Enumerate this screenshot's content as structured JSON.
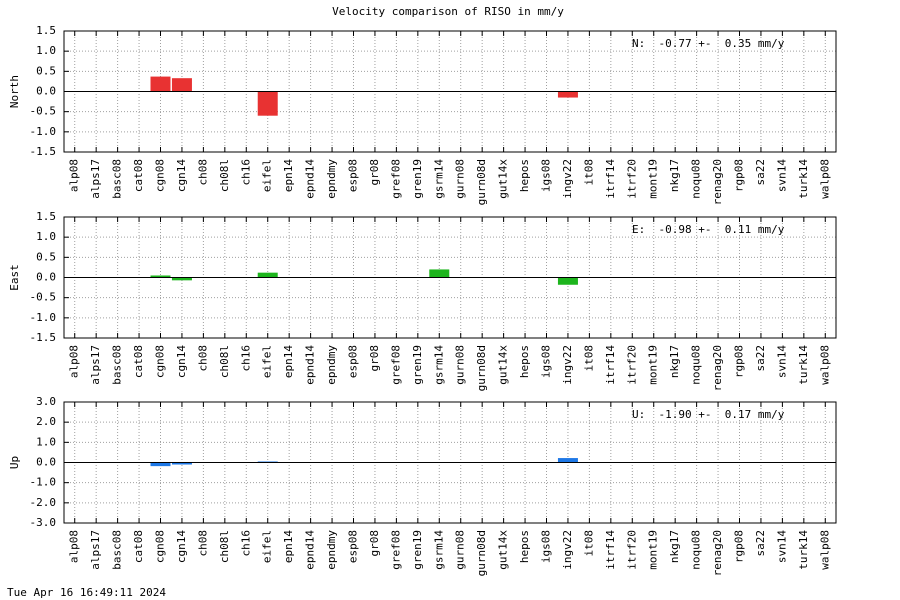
{
  "title": "Velocity comparison of RISO in mm/y",
  "footer": "Tue Apr 16 16:49:11 2024",
  "chart_data": [
    {
      "type": "bar",
      "ylabel": "North",
      "annotation": "N:  -0.77 +-  0.35 mm/y",
      "color": "#e83232",
      "grid": true,
      "categories": [
        "alp08",
        "alps17",
        "basc08",
        "cat08",
        "cgn08",
        "cgn14",
        "ch08",
        "ch08l",
        "ch16",
        "eifel",
        "epn14",
        "epnd14",
        "epndmy",
        "esp08",
        "gr08",
        "gref08",
        "gren19",
        "gsrm14",
        "gurn08",
        "gurn08d",
        "gut14x",
        "hepos",
        "igs08",
        "ingv22",
        "it08",
        "itrf14",
        "itrf20",
        "mont19",
        "nkg17",
        "noqu08",
        "renag20",
        "rgp08",
        "sa22",
        "svn14",
        "turk14",
        "walp08"
      ],
      "values": [
        null,
        null,
        null,
        null,
        0.37,
        0.33,
        null,
        null,
        null,
        -0.6,
        null,
        null,
        null,
        null,
        null,
        null,
        null,
        null,
        null,
        null,
        null,
        null,
        null,
        -0.15,
        null,
        null,
        null,
        null,
        null,
        null,
        null,
        null,
        null,
        null,
        null,
        null
      ],
      "ylim": [
        -1.5,
        1.5
      ],
      "yticks": [
        -1.5,
        {
          "value": -1.0,
          "label": "-1.0"
        },
        -0.5,
        {
          "value": 0,
          "label": "0.0"
        },
        0.5,
        {
          "value": 1.0,
          "label": "1.0"
        },
        1.5
      ]
    },
    {
      "type": "bar",
      "ylabel": "East",
      "annotation": "E:  -0.98 +-  0.11 mm/y",
      "color": "#1db51d",
      "grid": true,
      "categories": [
        "alp08",
        "alps17",
        "basc08",
        "cat08",
        "cgn08",
        "cgn14",
        "ch08",
        "ch08l",
        "ch16",
        "eifel",
        "epn14",
        "epnd14",
        "epndmy",
        "esp08",
        "gr08",
        "gref08",
        "gren19",
        "gsrm14",
        "gurn08",
        "gurn08d",
        "gut14x",
        "hepos",
        "igs08",
        "ingv22",
        "it08",
        "itrf14",
        "itrf20",
        "mont19",
        "nkg17",
        "noqu08",
        "renag20",
        "rgp08",
        "sa22",
        "svn14",
        "turk14",
        "walp08"
      ],
      "values": [
        null,
        null,
        null,
        null,
        0.05,
        -0.07,
        null,
        null,
        null,
        0.12,
        null,
        null,
        null,
        null,
        null,
        null,
        null,
        0.2,
        null,
        null,
        null,
        null,
        null,
        -0.18,
        null,
        null,
        null,
        null,
        null,
        null,
        null,
        null,
        null,
        null,
        null,
        null
      ],
      "ylim": [
        -1.5,
        1.5
      ],
      "yticks": [
        -1.5,
        {
          "value": -1.0,
          "label": "-1.0"
        },
        -0.5,
        {
          "value": 0,
          "label": "0.0"
        },
        0.5,
        {
          "value": 1.0,
          "label": "1.0"
        },
        1.5
      ]
    },
    {
      "type": "bar",
      "ylabel": "Up",
      "annotation": "U:  -1.90 +-  0.17 mm/y",
      "color": "#1e78e6",
      "grid": true,
      "categories": [
        "alp08",
        "alps17",
        "basc08",
        "cat08",
        "cgn08",
        "cgn14",
        "ch08",
        "ch08l",
        "ch16",
        "eifel",
        "epn14",
        "epnd14",
        "epndmy",
        "esp08",
        "gr08",
        "gref08",
        "gren19",
        "gsrm14",
        "gurn08",
        "gurn08d",
        "gut14x",
        "hepos",
        "igs08",
        "ingv22",
        "it08",
        "itrf14",
        "itrf20",
        "mont19",
        "nkg17",
        "noqu08",
        "renag20",
        "rgp08",
        "sa22",
        "svn14",
        "turk14",
        "walp08"
      ],
      "values": [
        null,
        null,
        null,
        null,
        -0.18,
        -0.1,
        null,
        null,
        null,
        0.05,
        null,
        null,
        null,
        null,
        null,
        null,
        null,
        null,
        null,
        null,
        null,
        null,
        null,
        0.22,
        null,
        null,
        null,
        null,
        null,
        null,
        null,
        null,
        null,
        null,
        null,
        null
      ],
      "ylim": [
        -3,
        3
      ],
      "yticks": [
        {
          "value": -3,
          "label": "-3.0"
        },
        {
          "value": -2,
          "label": "-2.0"
        },
        {
          "value": -1,
          "label": "-1.0"
        },
        {
          "value": 0,
          "label": "0.0"
        },
        {
          "value": 1,
          "label": "1.0"
        },
        {
          "value": 2,
          "label": "2.0"
        },
        {
          "value": 3,
          "label": "3.0"
        }
      ]
    }
  ]
}
